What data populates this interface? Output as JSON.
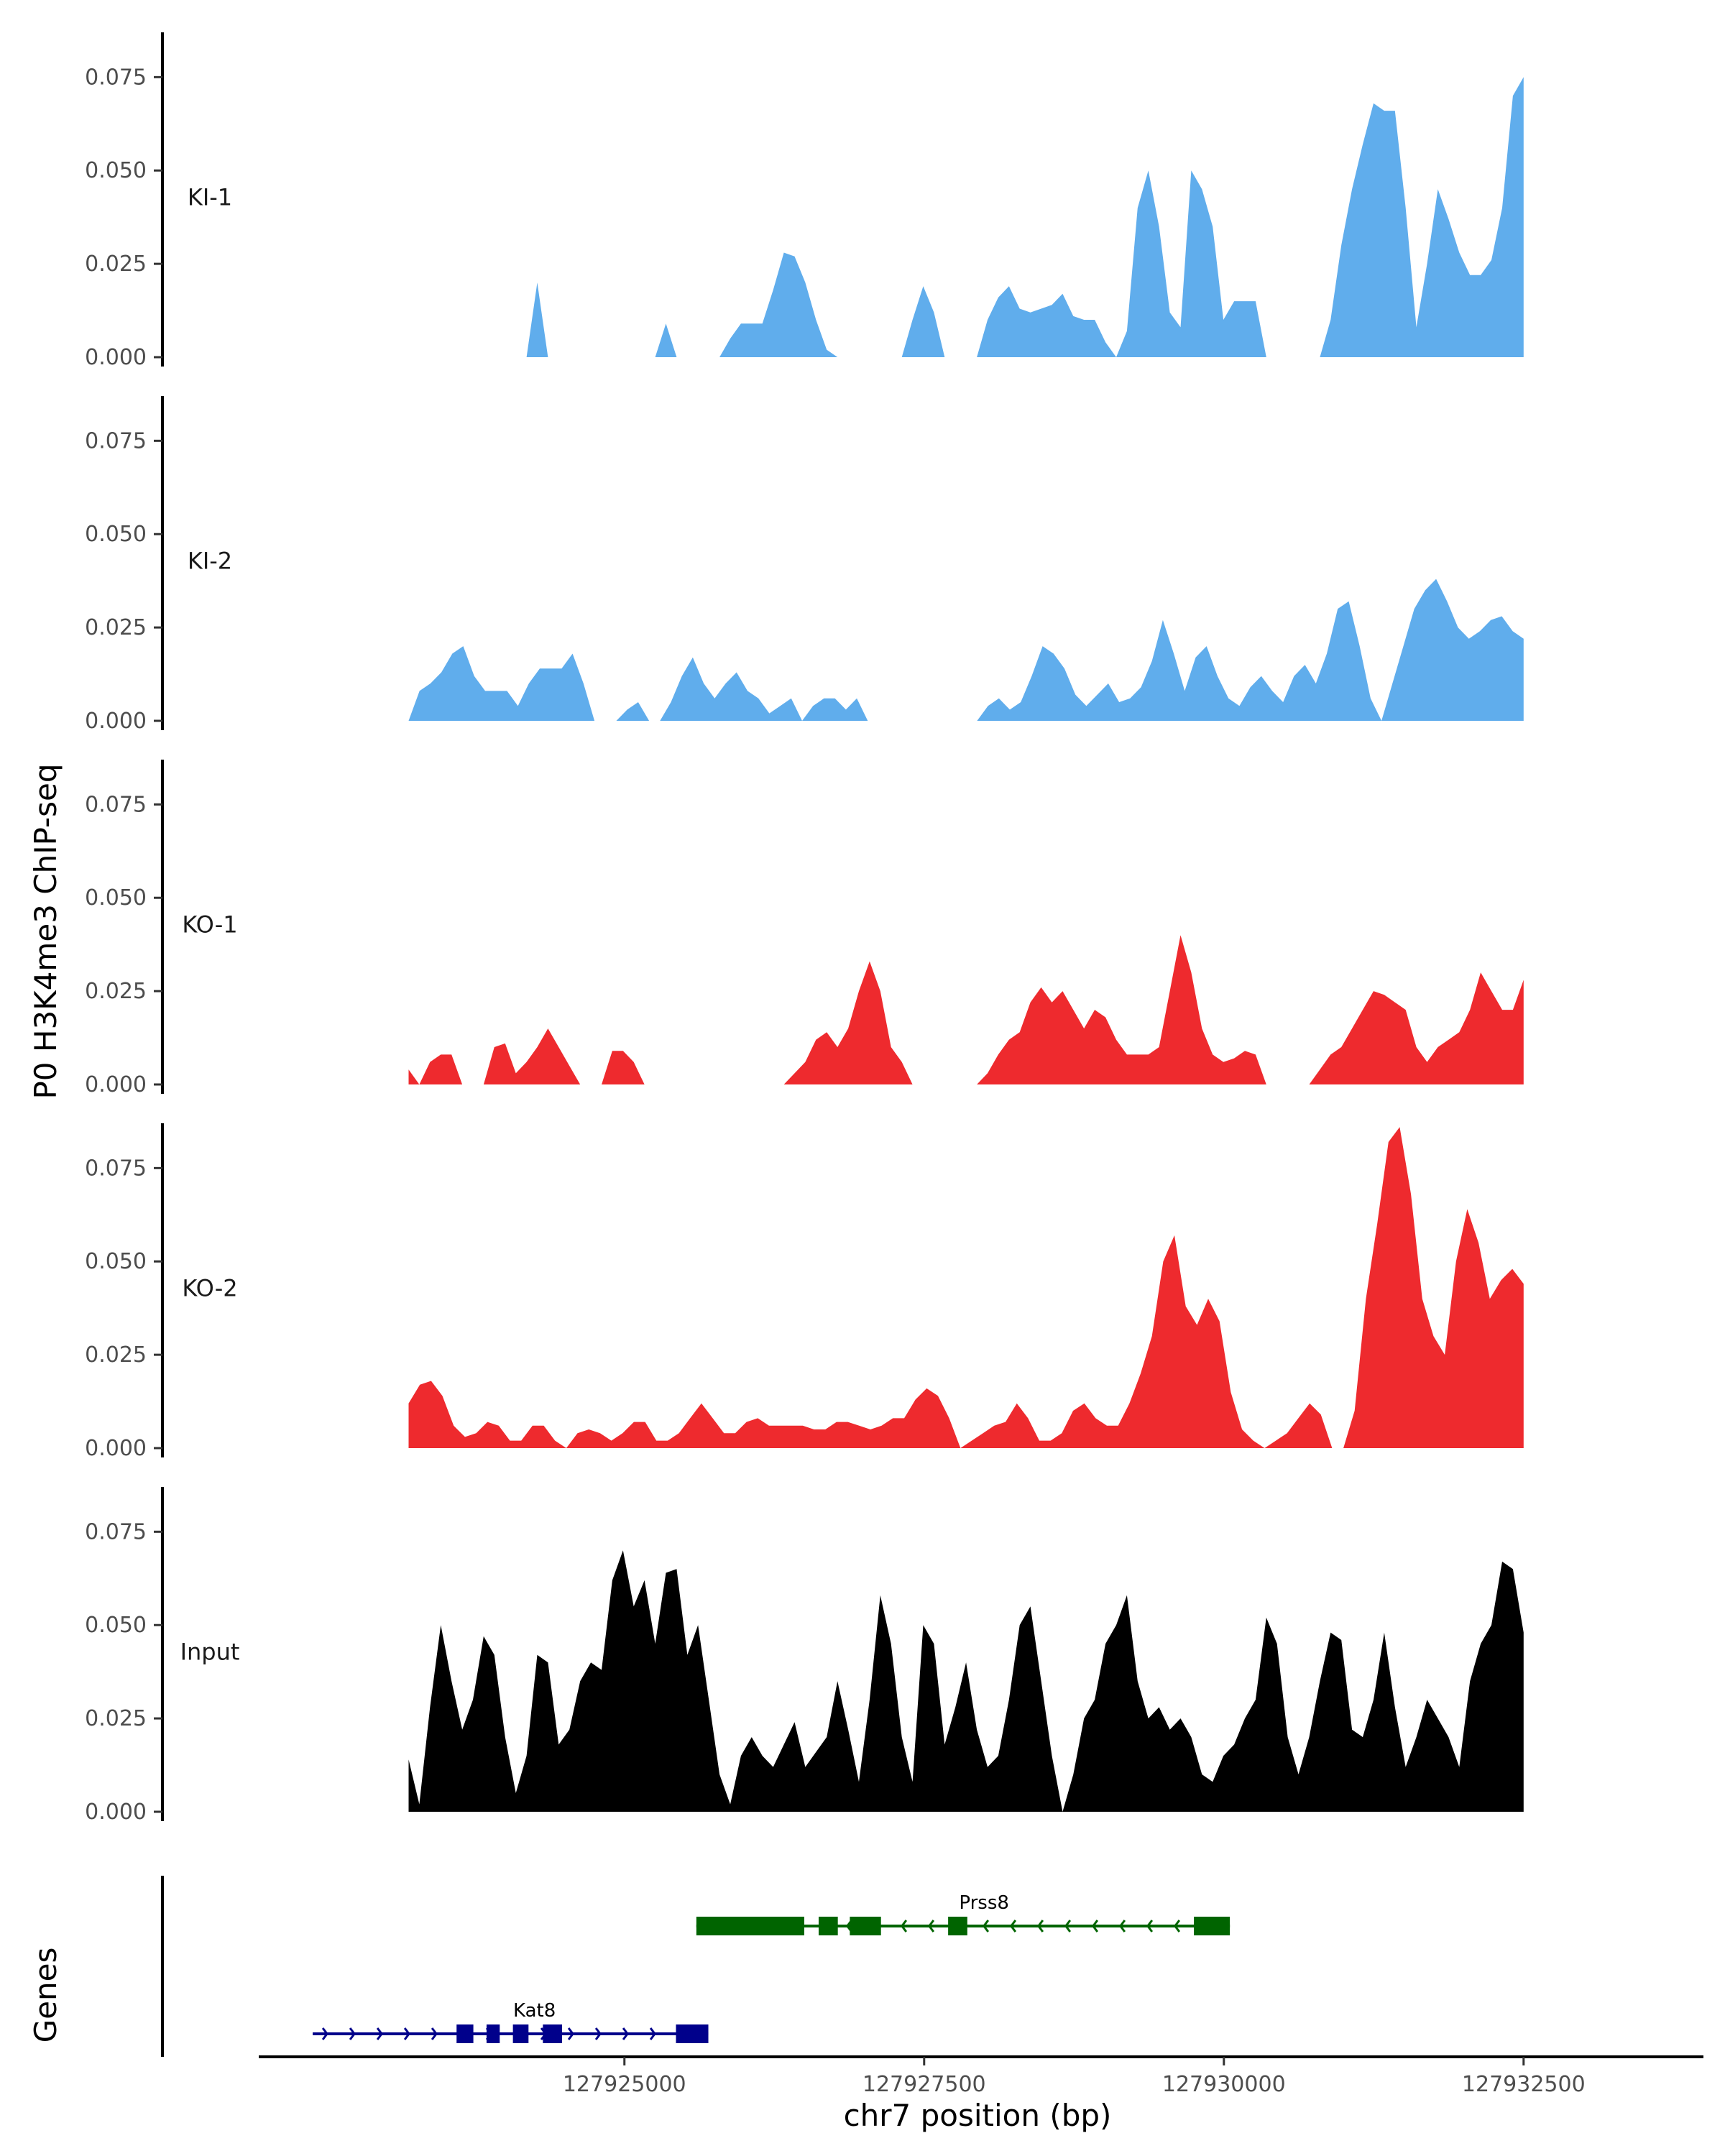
{
  "chart_data": {
    "type": "area",
    "ylabel": "P0 H3K4me3 ChIP-seq",
    "xlabel": "chr7 position (bp)",
    "ylim": [
      0,
      0.087
    ],
    "xlim": [
      127921950,
      127934000
    ],
    "x_ticks": [
      127925000,
      127927500,
      127930000,
      127932500
    ],
    "x_tick_labels": [
      "127925000",
      "127927500",
      "127930000",
      "127932500"
    ],
    "y_ticks": [
      0,
      0.025,
      0.05,
      0.075
    ],
    "y_tick_labels": [
      "0.000",
      "0.025",
      "0.050",
      "0.075"
    ],
    "genes_axis_label": "Genes",
    "tracks": [
      {
        "name": "KI-1",
        "color": "#60ADEC",
        "x_start": 127923200,
        "x_end": 127932500,
        "values": [
          0,
          0,
          0,
          0,
          0,
          0,
          0,
          0,
          0,
          0,
          0,
          0,
          0.02,
          0,
          0,
          0,
          0,
          0,
          0,
          0,
          0,
          0,
          0,
          0,
          0.009,
          0,
          0,
          0,
          0,
          0,
          0.005,
          0.009,
          0.009,
          0.009,
          0.018,
          0.028,
          0.027,
          0.02,
          0.01,
          0.002,
          0,
          0,
          0,
          0,
          0,
          0,
          0,
          0.01,
          0.019,
          0.012,
          0,
          0,
          0,
          0,
          0.01,
          0.016,
          0.019,
          0.013,
          0.012,
          0.013,
          0.014,
          0.017,
          0.011,
          0.01,
          0.01,
          0.004,
          0,
          0.007,
          0.04,
          0.05,
          0.035,
          0.012,
          0.008,
          0.05,
          0.045,
          0.035,
          0.01,
          0.015,
          0.015,
          0.015,
          0,
          0,
          0,
          0,
          0,
          0,
          0.01,
          0.03,
          0.045,
          0.057,
          0.068,
          0.066,
          0.066,
          0.04,
          0.008,
          0.025,
          0.045,
          0.037,
          0.028,
          0.022,
          0.022,
          0.026,
          0.04,
          0.07,
          0.075
        ]
      },
      {
        "name": "KI-2",
        "color": "#60ADEC",
        "x_start": 127923200,
        "x_end": 127932500,
        "values": [
          0,
          0.008,
          0.01,
          0.013,
          0.018,
          0.02,
          0.012,
          0.008,
          0.008,
          0.008,
          0.004,
          0.01,
          0.014,
          0.014,
          0.014,
          0.018,
          0.01,
          0,
          0,
          0,
          0.003,
          0.005,
          0,
          0,
          0.005,
          0.012,
          0.017,
          0.01,
          0.006,
          0.01,
          0.013,
          0.008,
          0.006,
          0.002,
          0.004,
          0.006,
          0,
          0.004,
          0.006,
          0.006,
          0.003,
          0.006,
          0,
          0,
          0,
          0,
          0,
          0,
          0,
          0,
          0,
          0,
          0,
          0.004,
          0.006,
          0.003,
          0.005,
          0.012,
          0.02,
          0.018,
          0.014,
          0.007,
          0.004,
          0.007,
          0.01,
          0.005,
          0.006,
          0.009,
          0.016,
          0.027,
          0.018,
          0.008,
          0.017,
          0.02,
          0.012,
          0.006,
          0.004,
          0.009,
          0.012,
          0.008,
          0.005,
          0.012,
          0.015,
          0.01,
          0.018,
          0.03,
          0.032,
          0.02,
          0.006,
          0,
          0.01,
          0.02,
          0.03,
          0.035,
          0.038,
          0.032,
          0.025,
          0.022,
          0.024,
          0.027,
          0.028,
          0.024,
          0.022
        ]
      },
      {
        "name": "KO-1",
        "color": "#EE2A2E",
        "x_start": 127923200,
        "x_end": 127932500,
        "values": [
          0.004,
          0,
          0.006,
          0.008,
          0.008,
          0,
          0,
          0,
          0.01,
          0.011,
          0.003,
          0.006,
          0.01,
          0.015,
          0.01,
          0.005,
          0,
          0,
          0,
          0.009,
          0.009,
          0.006,
          0,
          0,
          0,
          0,
          0,
          0,
          0,
          0,
          0,
          0,
          0,
          0,
          0,
          0,
          0.003,
          0.006,
          0.012,
          0.014,
          0.01,
          0.015,
          0.025,
          0.033,
          0.025,
          0.01,
          0.006,
          0,
          0,
          0,
          0,
          0,
          0,
          0,
          0.003,
          0.008,
          0.012,
          0.014,
          0.022,
          0.026,
          0.022,
          0.025,
          0.02,
          0.015,
          0.02,
          0.018,
          0.012,
          0.008,
          0.008,
          0.008,
          0.01,
          0.025,
          0.04,
          0.03,
          0.015,
          0.008,
          0.006,
          0.007,
          0.009,
          0.008,
          0,
          0,
          0,
          0,
          0,
          0.004,
          0.008,
          0.01,
          0.015,
          0.02,
          0.025,
          0.024,
          0.022,
          0.02,
          0.01,
          0.006,
          0.01,
          0.012,
          0.014,
          0.02,
          0.03,
          0.025,
          0.02,
          0.02,
          0.028
        ]
      },
      {
        "name": "KO-2",
        "color": "#EE2A2E",
        "x_start": 127923200,
        "x_end": 127932500,
        "values": [
          0.012,
          0.017,
          0.018,
          0.014,
          0.006,
          0.003,
          0.004,
          0.007,
          0.006,
          0.002,
          0.002,
          0.006,
          0.006,
          0.002,
          0,
          0.004,
          0.005,
          0.004,
          0.002,
          0.004,
          0.007,
          0.007,
          0.002,
          0.002,
          0.004,
          0.008,
          0.012,
          0.008,
          0.004,
          0.004,
          0.007,
          0.008,
          0.006,
          0.006,
          0.006,
          0.006,
          0.005,
          0.005,
          0.007,
          0.007,
          0.006,
          0.005,
          0.006,
          0.008,
          0.008,
          0.013,
          0.016,
          0.014,
          0.008,
          0,
          0.002,
          0.004,
          0.006,
          0.007,
          0.012,
          0.008,
          0.002,
          0.002,
          0.004,
          0.01,
          0.012,
          0.008,
          0.006,
          0.006,
          0.012,
          0.02,
          0.03,
          0.05,
          0.057,
          0.038,
          0.033,
          0.04,
          0.034,
          0.015,
          0.005,
          0.002,
          0,
          0.002,
          0.004,
          0.008,
          0.012,
          0.009,
          0,
          0,
          0.01,
          0.04,
          0.06,
          0.082,
          0.086,
          0.068,
          0.04,
          0.03,
          0.025,
          0.05,
          0.064,
          0.055,
          0.04,
          0.045,
          0.048,
          0.044
        ]
      },
      {
        "name": "Input",
        "color": "#000000",
        "x_start": 127923200,
        "x_end": 127932500,
        "values": [
          0.014,
          0.002,
          0.028,
          0.05,
          0.035,
          0.022,
          0.03,
          0.047,
          0.042,
          0.02,
          0.005,
          0.015,
          0.042,
          0.04,
          0.018,
          0.022,
          0.035,
          0.04,
          0.038,
          0.062,
          0.07,
          0.055,
          0.062,
          0.045,
          0.064,
          0.065,
          0.042,
          0.05,
          0.03,
          0.01,
          0.002,
          0.015,
          0.02,
          0.015,
          0.012,
          0.018,
          0.024,
          0.012,
          0.016,
          0.02,
          0.035,
          0.022,
          0.008,
          0.03,
          0.058,
          0.045,
          0.02,
          0.008,
          0.05,
          0.045,
          0.018,
          0.028,
          0.04,
          0.022,
          0.012,
          0.015,
          0.03,
          0.05,
          0.055,
          0.035,
          0.015,
          0,
          0.01,
          0.025,
          0.03,
          0.045,
          0.05,
          0.058,
          0.035,
          0.025,
          0.028,
          0.022,
          0.025,
          0.02,
          0.01,
          0.008,
          0.015,
          0.018,
          0.025,
          0.03,
          0.052,
          0.045,
          0.02,
          0.01,
          0.02,
          0.035,
          0.048,
          0.046,
          0.022,
          0.02,
          0.03,
          0.048,
          0.028,
          0.012,
          0.02,
          0.03,
          0.025,
          0.02,
          0.012,
          0.035,
          0.045,
          0.05,
          0.067,
          0.065,
          0.048
        ]
      }
    ],
    "genes": [
      {
        "name": "Kat8",
        "start": 127922400,
        "end": 127925700,
        "strand": "+",
        "color": "#00008B",
        "row": 2,
        "exons": [
          [
            127923600,
            127923740
          ],
          [
            127923850,
            127923960
          ],
          [
            127924070,
            127924200
          ],
          [
            127924320,
            127924480
          ],
          [
            127925430,
            127925700
          ]
        ]
      },
      {
        "name": "Prss8",
        "start": 127925600,
        "end": 127930050,
        "strand": "-",
        "color": "#006400",
        "row": 1,
        "exons": [
          [
            127925600,
            127926500
          ],
          [
            127926620,
            127926780
          ],
          [
            127926880,
            127927140
          ],
          [
            127927700,
            127927860
          ],
          [
            127929750,
            127930050
          ]
        ]
      }
    ]
  }
}
